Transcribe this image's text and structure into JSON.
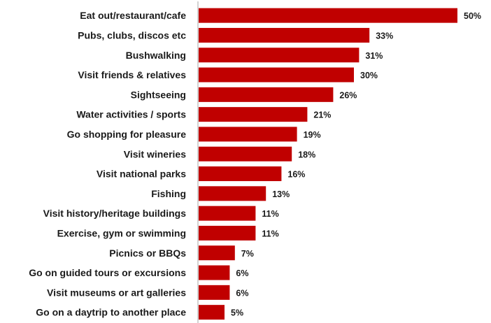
{
  "chart_data": {
    "type": "bar",
    "orientation": "horizontal",
    "categories": [
      "Eat out/restaurant/cafe",
      "Pubs, clubs, discos etc",
      "Bushwalking",
      "Visit friends & relatives",
      "Sightseeing",
      "Water activities / sports",
      "Go shopping for pleasure",
      "Visit wineries",
      "Visit national parks",
      "Fishing",
      "Visit history/heritage buildings",
      "Exercise, gym or swimming",
      "Picnics or BBQs",
      "Go on guided tours or excursions",
      "Visit museums or art galleries",
      "Go on a daytrip to another place"
    ],
    "values": [
      50,
      33,
      31,
      30,
      26,
      21,
      19,
      18,
      16,
      13,
      11,
      11,
      7,
      6,
      6,
      5
    ],
    "value_labels": [
      "50%",
      "33%",
      "31%",
      "30%",
      "26%",
      "21%",
      "19%",
      "18%",
      "16%",
      "13%",
      "11%",
      "11%",
      "7%",
      "6%",
      "6%",
      "5%"
    ],
    "unit": "%",
    "bar_color": "#c00000",
    "axis_color": "#a6a6a6",
    "xlim": [
      0,
      50
    ],
    "grid": false,
    "legend": "none"
  }
}
